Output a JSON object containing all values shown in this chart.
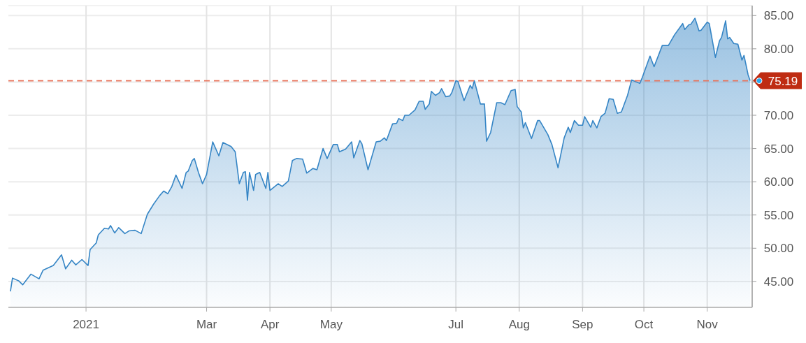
{
  "chart_data": {
    "type": "area",
    "xlim": [
      "2020-11-24",
      "2021-11-23"
    ],
    "ylim": [
      41.1,
      86.5
    ],
    "xticks": [
      {
        "value": "2021-01-01",
        "label": "2021"
      },
      {
        "value": "2021-03-01",
        "label": "Mar"
      },
      {
        "value": "2021-04-01",
        "label": "Apr"
      },
      {
        "value": "2021-05-01",
        "label": "May"
      },
      {
        "value": "2021-07-01",
        "label": "Jul"
      },
      {
        "value": "2021-08-01",
        "label": "Aug"
      },
      {
        "value": "2021-09-01",
        "label": "Sep"
      },
      {
        "value": "2021-10-01",
        "label": "Oct"
      },
      {
        "value": "2021-11-01",
        "label": "Nov"
      }
    ],
    "yticks": [
      {
        "value": 45,
        "label": "45.00"
      },
      {
        "value": 50,
        "label": "50.00"
      },
      {
        "value": 55,
        "label": "55.00"
      },
      {
        "value": 60,
        "label": "60.00"
      },
      {
        "value": 65,
        "label": "65.00"
      },
      {
        "value": 70,
        "label": "70.00"
      },
      {
        "value": 75,
        "label": null
      },
      {
        "value": 80,
        "label": "80.00"
      },
      {
        "value": 85,
        "label": "85.00"
      }
    ],
    "grid": true,
    "ref_lines": [
      {
        "axis": "y",
        "value": 75.19,
        "label": "75.19",
        "color": "#e8735a",
        "line_style": "dashed"
      }
    ],
    "x": [
      "2020-11-25",
      "2020-11-26",
      "2020-11-29",
      "2020-12-01",
      "2020-12-05",
      "2020-12-09",
      "2020-12-11",
      "2020-12-16",
      "2020-12-20",
      "2020-12-22",
      "2020-12-25",
      "2020-12-27",
      "2020-12-30",
      "2021-01-02",
      "2021-01-03",
      "2021-01-06",
      "2021-01-07",
      "2021-01-10",
      "2021-01-12",
      "2021-01-13",
      "2021-01-15",
      "2021-01-17",
      "2021-01-20",
      "2021-01-22",
      "2021-01-25",
      "2021-01-28",
      "2021-01-31",
      "2021-02-03",
      "2021-02-06",
      "2021-02-08",
      "2021-02-10",
      "2021-02-12",
      "2021-02-14",
      "2021-02-17",
      "2021-02-19",
      "2021-02-20",
      "2021-02-22",
      "2021-02-23",
      "2021-02-25",
      "2021-02-27",
      "2021-03-01",
      "2021-03-04",
      "2021-03-07",
      "2021-03-09",
      "2021-03-13",
      "2021-03-15",
      "2021-03-17",
      "2021-03-19",
      "2021-03-20",
      "2021-03-21",
      "2021-03-22",
      "2021-03-24",
      "2021-03-25",
      "2021-03-27",
      "2021-03-30",
      "2021-03-31",
      "2021-04-01",
      "2021-04-05",
      "2021-04-07",
      "2021-04-10",
      "2021-04-12",
      "2021-04-14",
      "2021-04-17",
      "2021-04-19",
      "2021-04-22",
      "2021-04-24",
      "2021-04-27",
      "2021-04-29",
      "2021-05-02",
      "2021-05-04",
      "2021-05-05",
      "2021-05-08",
      "2021-05-11",
      "2021-05-12",
      "2021-05-15",
      "2021-05-16",
      "2021-05-19",
      "2021-05-23",
      "2021-05-25",
      "2021-05-27",
      "2021-05-28",
      "2021-05-31",
      "2021-06-02",
      "2021-06-03",
      "2021-06-05",
      "2021-06-06",
      "2021-06-08",
      "2021-06-11",
      "2021-06-13",
      "2021-06-15",
      "2021-06-16",
      "2021-06-18",
      "2021-06-19",
      "2021-06-21",
      "2021-06-23",
      "2021-06-24",
      "2021-06-26",
      "2021-06-28",
      "2021-06-29",
      "2021-07-01",
      "2021-07-02",
      "2021-07-05",
      "2021-07-08",
      "2021-07-09",
      "2021-07-10",
      "2021-07-13",
      "2021-07-15",
      "2021-07-16",
      "2021-07-18",
      "2021-07-21",
      "2021-07-23",
      "2021-07-25",
      "2021-07-28",
      "2021-07-30",
      "2021-07-31",
      "2021-08-02",
      "2021-08-03",
      "2021-08-04",
      "2021-08-07",
      "2021-08-10",
      "2021-08-11",
      "2021-08-15",
      "2021-08-17",
      "2021-08-20",
      "2021-08-23",
      "2021-08-25",
      "2021-08-26",
      "2021-08-28",
      "2021-08-30",
      "2021-09-01",
      "2021-09-02",
      "2021-09-05",
      "2021-09-06",
      "2021-09-08",
      "2021-09-10",
      "2021-09-12",
      "2021-09-14",
      "2021-09-16",
      "2021-09-18",
      "2021-09-20",
      "2021-09-23",
      "2021-09-25",
      "2021-09-29",
      "2021-09-30",
      "2021-10-04",
      "2021-10-06",
      "2021-10-10",
      "2021-10-13",
      "2021-10-16",
      "2021-10-20",
      "2021-10-21",
      "2021-10-23",
      "2021-10-24",
      "2021-10-26",
      "2021-10-28",
      "2021-10-29",
      "2021-11-01",
      "2021-11-02",
      "2021-11-05",
      "2021-11-07",
      "2021-11-08",
      "2021-11-10",
      "2021-11-11",
      "2021-11-12",
      "2021-11-14",
      "2021-11-16",
      "2021-11-18",
      "2021-11-19",
      "2021-11-21",
      "2021-11-22"
    ],
    "series": [
      {
        "color": "#3585c5",
        "values": [
          43.5,
          45.5,
          45.1,
          44.5,
          46.1,
          45.4,
          46.7,
          47.4,
          49.0,
          46.9,
          48.2,
          47.5,
          48.3,
          47.4,
          49.8,
          50.8,
          52.0,
          53.0,
          52.9,
          53.4,
          52.3,
          53.1,
          52.2,
          52.6,
          52.7,
          52.2,
          55.1,
          56.6,
          57.9,
          58.6,
          58.2,
          59.3,
          61.0,
          59.0,
          61.4,
          61.6,
          63.2,
          63.5,
          61.4,
          59.7,
          61.1,
          66.0,
          63.9,
          65.9,
          65.3,
          64.5,
          59.7,
          61.4,
          61.5,
          57.2,
          61.4,
          58.7,
          61.1,
          61.4,
          59.0,
          61.4,
          58.7,
          59.7,
          59.3,
          60.1,
          63.2,
          63.5,
          63.4,
          61.3,
          62.0,
          61.8,
          65.0,
          63.5,
          65.6,
          65.6,
          64.5,
          64.9,
          66.0,
          63.6,
          66.2,
          65.7,
          61.8,
          66.0,
          66.1,
          66.6,
          66.2,
          68.7,
          68.8,
          69.5,
          69.2,
          70.0,
          70.0,
          70.8,
          72.1,
          72.1,
          70.9,
          71.7,
          73.6,
          73.0,
          73.4,
          74.0,
          72.8,
          72.9,
          73.4,
          75.2,
          75.1,
          72.2,
          74.5,
          74.0,
          75.2,
          71.7,
          71.7,
          66.1,
          67.4,
          71.9,
          71.9,
          71.6,
          73.7,
          73.9,
          71.3,
          70.5,
          68.1,
          68.9,
          66.5,
          69.2,
          69.2,
          67.1,
          65.6,
          62.1,
          66.6,
          68.2,
          67.4,
          69.2,
          68.5,
          68.5,
          69.8,
          68.2,
          69.2,
          68.1,
          69.8,
          70.3,
          72.5,
          72.4,
          70.3,
          70.5,
          73.0,
          75.3,
          74.8,
          75.5,
          78.9,
          77.3,
          80.5,
          80.5,
          82.1,
          83.8,
          82.9,
          83.6,
          83.7,
          84.6,
          82.7,
          82.8,
          84.0,
          83.8,
          78.7,
          81.2,
          81.7,
          84.2,
          81.5,
          81.7,
          80.8,
          80.7,
          78.3,
          79.0,
          76.1,
          75.2
        ]
      }
    ]
  }
}
